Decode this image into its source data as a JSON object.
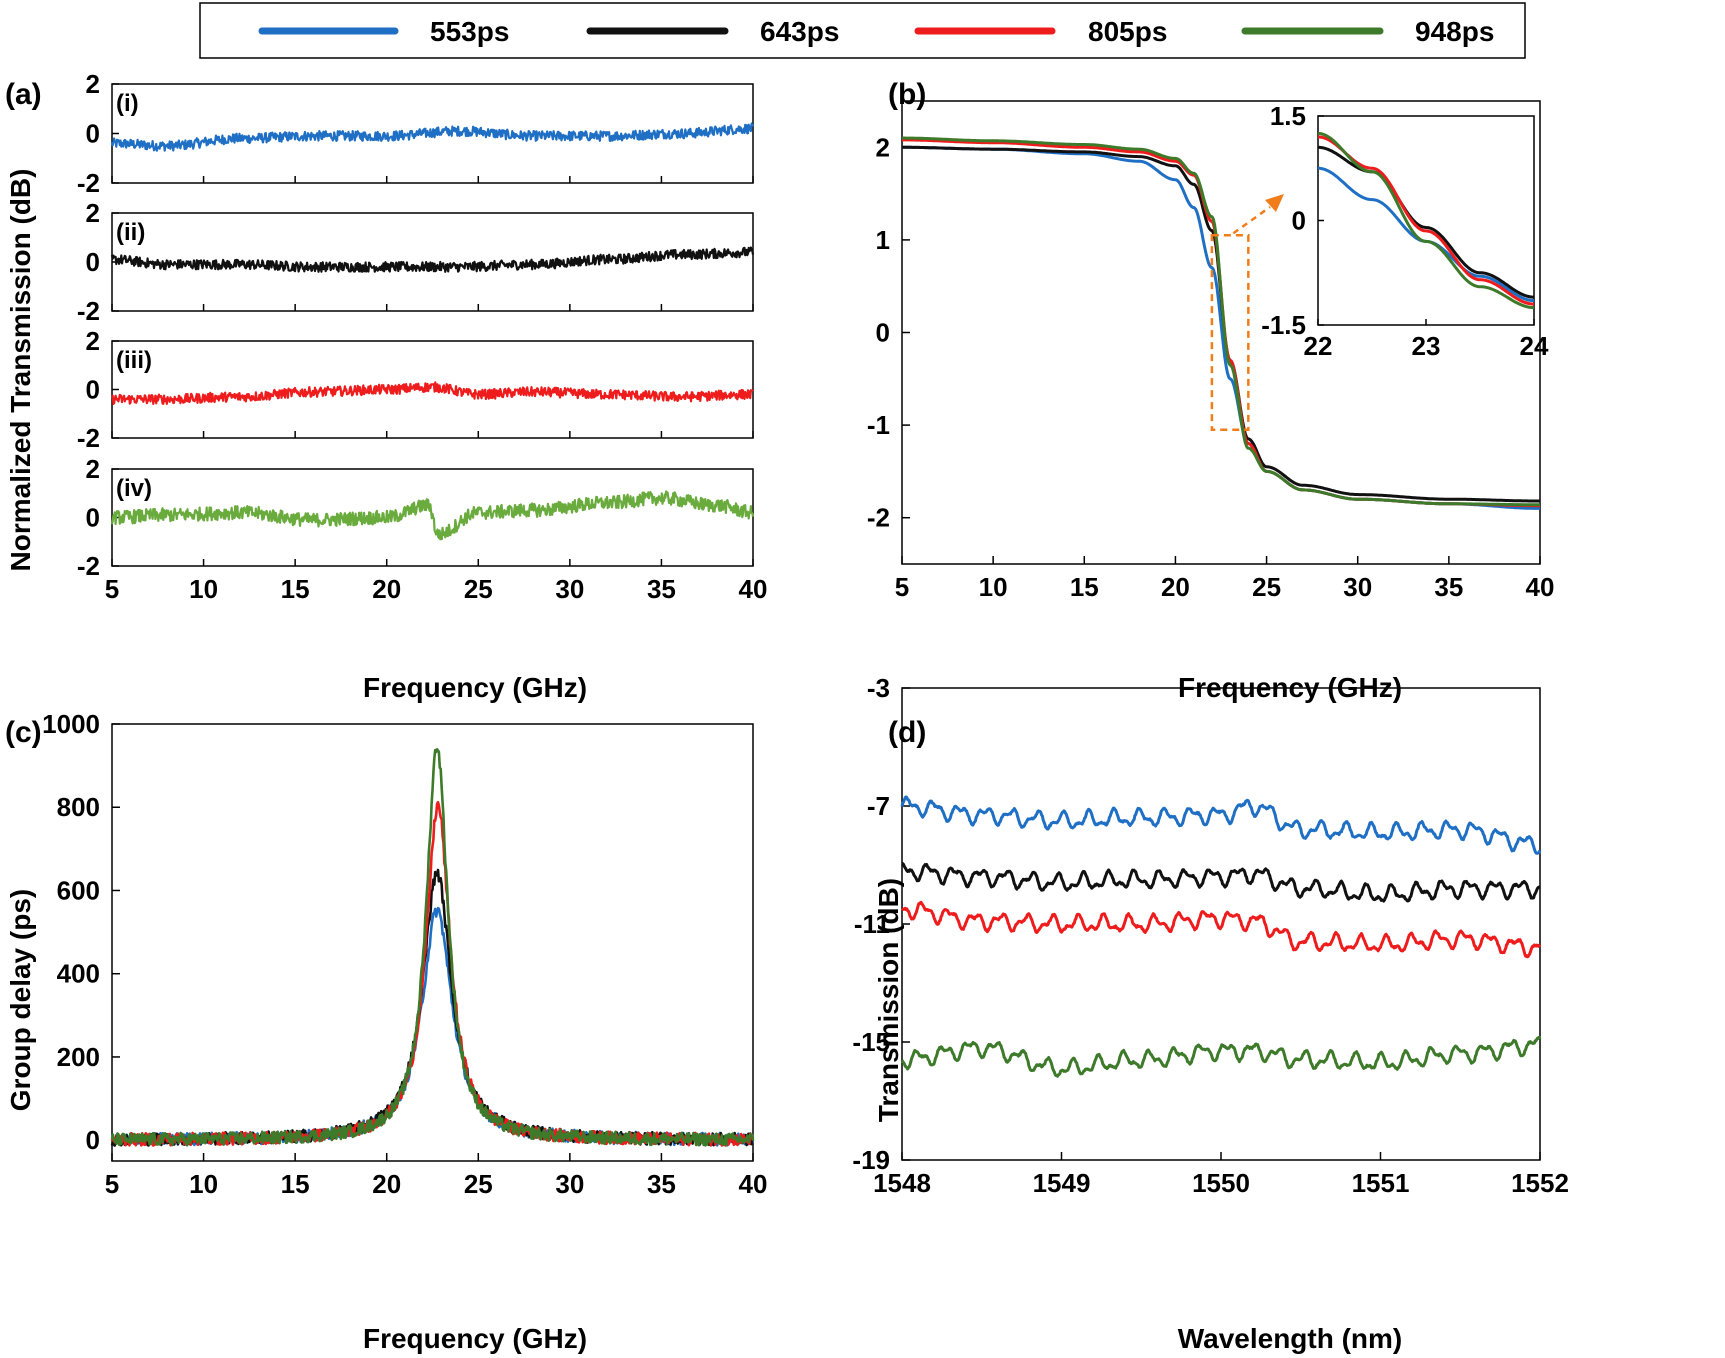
{
  "colors": {
    "553ps": "#1f6fc4",
    "643ps": "#111111",
    "805ps": "#ee1c1c",
    "948ps": "#3d7a2a",
    "948ps_a": "#6aab3e",
    "inset_box": "#f07d1a"
  },
  "legend": [
    {
      "label": "553ps",
      "color": "#1f6fc4"
    },
    {
      "label": "643ps",
      "color": "#111111"
    },
    {
      "label": "805ps",
      "color": "#ee1c1c"
    },
    {
      "label": "948ps",
      "color": "#3d7a2a"
    }
  ],
  "panels": {
    "a": {
      "label": "(a)",
      "ylabel": "Normalized Transmission (dB)",
      "xlabel": "Frequency (GHz)"
    },
    "b": {
      "label": "(b)",
      "xlabel": "Frequency (GHz)"
    },
    "c": {
      "label": "(c)",
      "ylabel": "Group delay (ps)",
      "xlabel": "Frequency (GHz)"
    },
    "d": {
      "label": "(d)",
      "ylabel": "Transmission (dB)",
      "xlabel": "Wavelength (nm)"
    }
  },
  "chart_data": [
    {
      "id": "a",
      "type": "line",
      "title": "(a)",
      "xlabel": "Frequency (GHz)",
      "ylabel": "Normalized Transmission (dB)",
      "xlim": [
        5,
        40
      ],
      "xticks": [
        "5",
        "10",
        "15",
        "20",
        "25",
        "30",
        "35",
        "40"
      ],
      "subplots": [
        {
          "label": "(i)",
          "series": "553ps",
          "ylim": [
            -2,
            2
          ],
          "yticks": [
            "2",
            "0",
            "-2"
          ],
          "x": [
            5,
            8,
            12,
            16,
            20,
            24,
            28,
            32,
            36,
            40
          ],
          "values": [
            -0.4,
            -0.5,
            -0.2,
            -0.1,
            -0.1,
            0.1,
            -0.1,
            -0.1,
            0.0,
            0.2
          ]
        },
        {
          "label": "(ii)",
          "series": "643ps",
          "ylim": [
            -2,
            2
          ],
          "yticks": [
            "2",
            "0",
            "-2"
          ],
          "x": [
            5,
            8,
            12,
            16,
            20,
            24,
            28,
            32,
            36,
            40
          ],
          "values": [
            0.1,
            -0.1,
            -0.1,
            -0.2,
            -0.2,
            -0.2,
            -0.1,
            0.1,
            0.3,
            0.4
          ]
        },
        {
          "label": "(iii)",
          "series": "805ps",
          "ylim": [
            -2,
            2
          ],
          "yticks": [
            "2",
            "0",
            "-2"
          ],
          "x": [
            5,
            8,
            12,
            16,
            20,
            22.5,
            25,
            28,
            32,
            36,
            40
          ],
          "values": [
            -0.4,
            -0.4,
            -0.3,
            -0.1,
            0.0,
            0.1,
            -0.2,
            -0.1,
            -0.2,
            -0.3,
            -0.2
          ]
        },
        {
          "label": "(iv)",
          "series": "948ps",
          "ylim": [
            -2,
            2
          ],
          "yticks": [
            "2",
            "0",
            "-2"
          ],
          "x": [
            5,
            8,
            12,
            16,
            20,
            22.3,
            22.8,
            25,
            28,
            32,
            35,
            38,
            40
          ],
          "values": [
            0.0,
            0.1,
            0.2,
            -0.1,
            0.0,
            0.5,
            -0.7,
            0.2,
            0.3,
            0.6,
            0.8,
            0.5,
            0.2
          ]
        }
      ]
    },
    {
      "id": "b",
      "type": "line",
      "title": "(b)",
      "xlabel": "Frequency (GHz)",
      "ylabel": "",
      "xlim": [
        5,
        40
      ],
      "ylim": [
        -2.5,
        2.5
      ],
      "xticks": [
        "5",
        "10",
        "15",
        "20",
        "25",
        "30",
        "35",
        "40"
      ],
      "yticks": [
        "2",
        "1",
        "0",
        "-1",
        "-2"
      ],
      "series": [
        {
          "name": "553ps",
          "x": [
            5,
            10,
            15,
            18,
            20,
            21,
            22,
            23,
            24,
            25,
            27,
            30,
            35,
            40
          ],
          "values": [
            2.0,
            1.98,
            1.93,
            1.85,
            1.65,
            1.35,
            0.7,
            -0.5,
            -1.2,
            -1.5,
            -1.7,
            -1.8,
            -1.85,
            -1.9
          ]
        },
        {
          "name": "643ps",
          "x": [
            5,
            10,
            15,
            18,
            20,
            21,
            22,
            23,
            24,
            25,
            27,
            30,
            35,
            40
          ],
          "values": [
            2.0,
            1.98,
            1.95,
            1.9,
            1.8,
            1.6,
            1.1,
            -0.3,
            -1.15,
            -1.45,
            -1.65,
            -1.75,
            -1.8,
            -1.82
          ]
        },
        {
          "name": "805ps",
          "x": [
            5,
            10,
            15,
            18,
            20,
            21,
            22,
            23,
            24,
            25,
            27,
            30,
            35,
            40
          ],
          "values": [
            2.08,
            2.05,
            2.0,
            1.95,
            1.85,
            1.7,
            1.2,
            -0.3,
            -1.2,
            -1.5,
            -1.7,
            -1.8,
            -1.85,
            -1.87
          ]
        },
        {
          "name": "948ps",
          "x": [
            5,
            10,
            15,
            18,
            20,
            21,
            22,
            23,
            24,
            25,
            27,
            30,
            35,
            40
          ],
          "values": [
            2.1,
            2.07,
            2.03,
            1.98,
            1.88,
            1.72,
            1.25,
            -0.35,
            -1.25,
            -1.5,
            -1.7,
            -1.8,
            -1.85,
            -1.86
          ]
        }
      ],
      "inset": {
        "xlim": [
          22,
          24
        ],
        "ylim": [
          -1.5,
          1.5
        ],
        "xticks": [
          "22",
          "23",
          "24"
        ],
        "yticks": [
          "1.5",
          "0",
          "-1.5"
        ],
        "series": [
          {
            "name": "553ps",
            "x": [
              22,
              22.5,
              23,
              23.5,
              24
            ],
            "values": [
              0.75,
              0.3,
              -0.3,
              -0.8,
              -1.15
            ]
          },
          {
            "name": "643ps",
            "x": [
              22,
              22.5,
              23,
              23.5,
              24
            ],
            "values": [
              1.05,
              0.7,
              -0.1,
              -0.75,
              -1.1
            ]
          },
          {
            "name": "805ps",
            "x": [
              22,
              22.5,
              23,
              23.5,
              24
            ],
            "values": [
              1.2,
              0.75,
              -0.15,
              -0.85,
              -1.2
            ]
          },
          {
            "name": "948ps",
            "x": [
              22,
              22.5,
              23,
              23.5,
              24
            ],
            "values": [
              1.25,
              0.7,
              -0.3,
              -0.95,
              -1.25
            ]
          }
        ]
      }
    },
    {
      "id": "c",
      "type": "line",
      "title": "(c)",
      "xlabel": "Frequency (GHz)",
      "ylabel": "Group delay (ps)",
      "xlim": [
        5,
        40
      ],
      "ylim": [
        -50,
        1000
      ],
      "xticks": [
        "5",
        "10",
        "15",
        "20",
        "25",
        "30",
        "35",
        "40"
      ],
      "yticks": [
        "1000",
        "800",
        "600",
        "400",
        "200",
        "0"
      ],
      "series": [
        {
          "name": "553ps",
          "peak_x": 22.75,
          "peak": 553,
          "hwhm": 1.0
        },
        {
          "name": "643ps",
          "peak_x": 22.75,
          "peak": 643,
          "hwhm": 0.95
        },
        {
          "name": "805ps",
          "peak_x": 22.8,
          "peak": 805,
          "hwhm": 0.8
        },
        {
          "name": "948ps",
          "peak_x": 22.75,
          "peak": 948,
          "hwhm": 0.72
        }
      ]
    },
    {
      "id": "d",
      "type": "line",
      "title": "(d)",
      "xlabel": "Wavelength (nm)",
      "ylabel": "Transmission (dB)",
      "xlim": [
        1548,
        1552
      ],
      "ylim": [
        -19,
        -3
      ],
      "xticks": [
        "1548",
        "1549",
        "1550",
        "1551",
        "1552"
      ],
      "yticks": [
        "-3",
        "-7",
        "-11",
        "-15",
        "-19"
      ],
      "series": [
        {
          "name": "553ps",
          "x": [
            1548,
            1548.5,
            1549,
            1549.5,
            1550,
            1550.2,
            1550.5,
            1551,
            1551.5,
            1552
          ],
          "values": [
            -7.0,
            -7.3,
            -7.5,
            -7.4,
            -7.3,
            -7.0,
            -7.8,
            -7.9,
            -7.8,
            -8.3
          ]
        },
        {
          "name": "643ps",
          "x": [
            1548,
            1548.5,
            1549,
            1549.5,
            1550,
            1550.2,
            1550.5,
            1551,
            1551.5,
            1552
          ],
          "values": [
            -9.2,
            -9.4,
            -9.6,
            -9.5,
            -9.4,
            -9.3,
            -9.8,
            -10.0,
            -9.8,
            -9.8
          ]
        },
        {
          "name": "805ps",
          "x": [
            1548,
            1548.5,
            1549,
            1549.5,
            1550,
            1550.2,
            1550.5,
            1551,
            1551.5,
            1552
          ],
          "values": [
            -10.5,
            -10.9,
            -11.0,
            -11.0,
            -10.8,
            -10.9,
            -11.6,
            -11.7,
            -11.5,
            -11.8
          ]
        },
        {
          "name": "948ps",
          "x": [
            1548,
            1548.5,
            1549,
            1549.5,
            1550,
            1550.2,
            1550.5,
            1551,
            1551.5,
            1552
          ],
          "values": [
            -15.6,
            -15.2,
            -15.9,
            -15.6,
            -15.3,
            -15.3,
            -15.6,
            -15.7,
            -15.4,
            -15.1
          ]
        }
      ]
    }
  ]
}
